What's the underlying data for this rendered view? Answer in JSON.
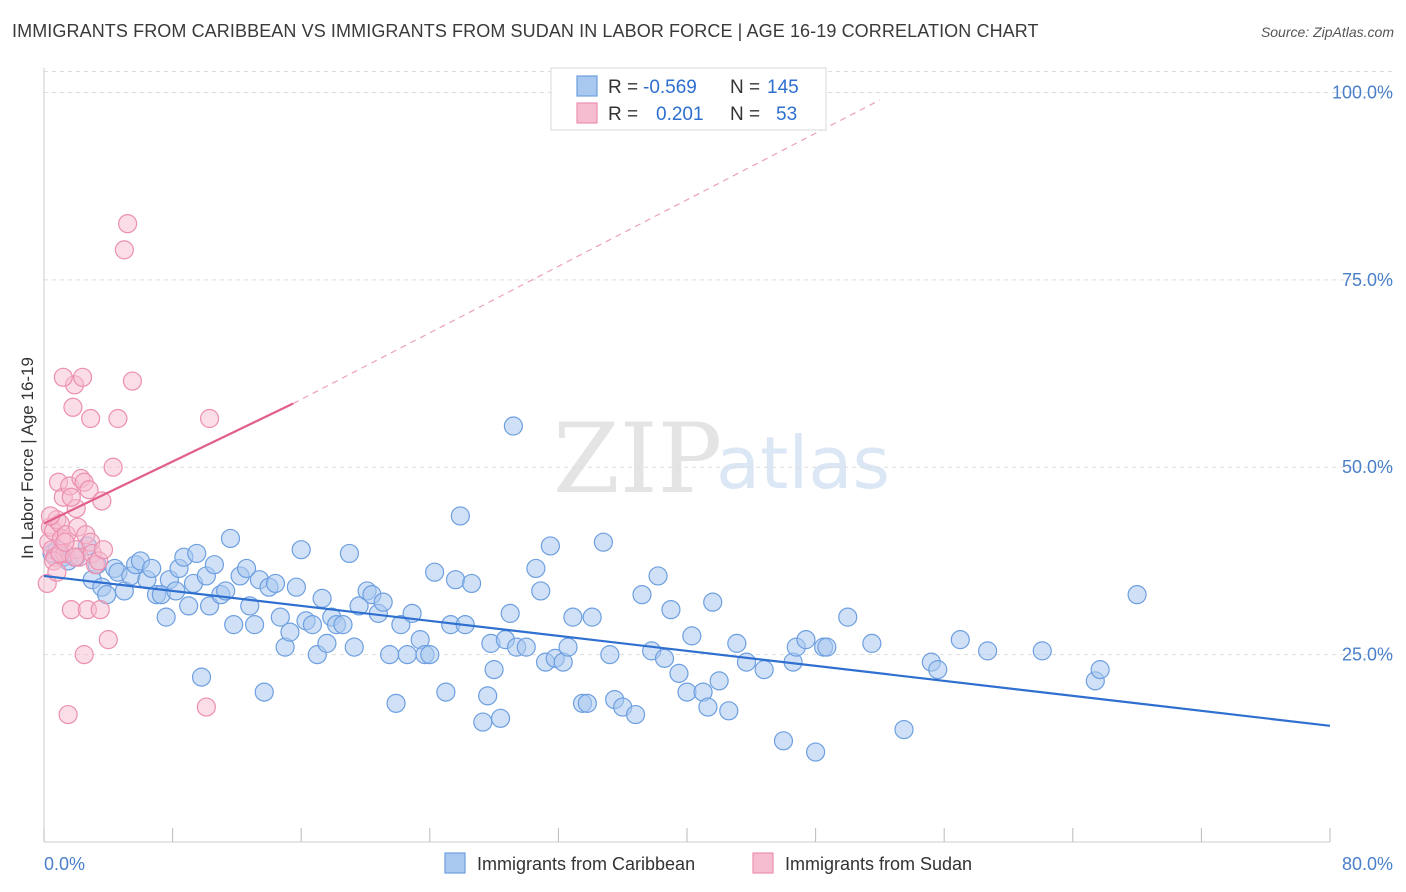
{
  "title": "IMMIGRANTS FROM CARIBBEAN VS IMMIGRANTS FROM SUDAN IN LABOR FORCE | AGE 16-19 CORRELATION CHART",
  "source": "Source: ZipAtlas.com",
  "watermark": {
    "zip": "ZIP",
    "atlas": "atlas"
  },
  "colors": {
    "caribbean_fill": "#a9c8f0",
    "caribbean_stroke": "#6d9fe0",
    "caribbean_line": "#2f6fcf",
    "sudan_fill": "#f6bcd0",
    "sudan_stroke": "#ec8fae",
    "sudan_line": "#e0608a",
    "tick_text": "#4a7fc9",
    "grid": "#dddddd"
  },
  "legend": {
    "rows": [
      {
        "r_label": "R =",
        "r_value": "-0.569",
        "n_label": "N =",
        "n_value": "145"
      },
      {
        "r_label": "R =",
        "r_value": "0.201",
        "n_label": "N =",
        "n_value": "53"
      }
    ]
  },
  "chart_data": {
    "type": "scatter",
    "title": "IMMIGRANTS FROM CARIBBEAN VS IMMIGRANTS FROM SUDAN IN LABOR FORCE | AGE 16-19 CORRELATION CHART",
    "xlabel": "",
    "ylabel": "In Labor Force | Age 16-19",
    "xlim": [
      0,
      80
    ],
    "ylim": [
      0,
      103
    ],
    "x_tick_labels": [
      "0.0%",
      "80.0%"
    ],
    "y_tick_labels": [
      "25.0%",
      "50.0%",
      "75.0%",
      "100.0%"
    ],
    "y_ticks": [
      25,
      50,
      75,
      100
    ],
    "grid": true,
    "legend_placement": "bottom",
    "series": [
      {
        "name": "Immigrants from Caribbean",
        "r": -0.569,
        "n": 145,
        "trend": {
          "x": [
            0,
            80
          ],
          "y": [
            35.5,
            15.5
          ]
        },
        "points": [
          [
            0.5,
            38.5
          ],
          [
            0.8,
            39
          ],
          [
            1.2,
            38
          ],
          [
            1.5,
            37.5
          ],
          [
            2,
            38
          ],
          [
            2.7,
            39.5
          ],
          [
            3,
            35
          ],
          [
            3.3,
            37
          ],
          [
            3.6,
            34
          ],
          [
            3.9,
            33
          ],
          [
            4.4,
            36.5
          ],
          [
            4.6,
            36
          ],
          [
            5,
            33.5
          ],
          [
            5.4,
            35.5
          ],
          [
            5.7,
            37
          ],
          [
            6,
            37.5
          ],
          [
            6.4,
            35
          ],
          [
            6.7,
            36.5
          ],
          [
            7,
            33
          ],
          [
            7.3,
            33
          ],
          [
            7.6,
            30
          ],
          [
            7.8,
            35
          ],
          [
            8.2,
            33.5
          ],
          [
            8.4,
            36.5
          ],
          [
            8.7,
            38
          ],
          [
            9,
            31.5
          ],
          [
            9.3,
            34.5
          ],
          [
            9.5,
            38.5
          ],
          [
            9.8,
            22
          ],
          [
            10.1,
            35.5
          ],
          [
            10.3,
            31.5
          ],
          [
            10.6,
            37
          ],
          [
            11,
            33
          ],
          [
            11.3,
            33.5
          ],
          [
            11.6,
            40.5
          ],
          [
            11.8,
            29
          ],
          [
            12.2,
            35.5
          ],
          [
            12.6,
            36.5
          ],
          [
            12.8,
            31.5
          ],
          [
            13.1,
            29
          ],
          [
            13.4,
            35
          ],
          [
            13.7,
            20
          ],
          [
            14,
            34
          ],
          [
            14.4,
            34.5
          ],
          [
            14.7,
            30
          ],
          [
            15,
            26
          ],
          [
            15.3,
            28
          ],
          [
            15.7,
            34
          ],
          [
            16,
            39
          ],
          [
            16.3,
            29.5
          ],
          [
            16.7,
            29
          ],
          [
            17,
            25
          ],
          [
            17.3,
            32.5
          ],
          [
            17.6,
            26.5
          ],
          [
            17.9,
            30
          ],
          [
            18.2,
            29
          ],
          [
            18.6,
            29
          ],
          [
            19,
            38.5
          ],
          [
            19.3,
            26
          ],
          [
            19.6,
            31.5
          ],
          [
            20.1,
            33.5
          ],
          [
            20.4,
            33
          ],
          [
            20.8,
            30.5
          ],
          [
            21.1,
            32
          ],
          [
            21.5,
            25
          ],
          [
            21.9,
            18.5
          ],
          [
            22.2,
            29
          ],
          [
            22.6,
            25
          ],
          [
            22.9,
            30.5
          ],
          [
            23.4,
            27
          ],
          [
            23.7,
            25
          ],
          [
            24,
            25
          ],
          [
            24.3,
            36
          ],
          [
            25,
            20
          ],
          [
            25.3,
            29
          ],
          [
            25.6,
            35
          ],
          [
            25.9,
            43.5
          ],
          [
            26.2,
            29
          ],
          [
            26.6,
            34.5
          ],
          [
            27.3,
            16
          ],
          [
            27.6,
            19.5
          ],
          [
            27.8,
            26.5
          ],
          [
            28,
            23
          ],
          [
            28.4,
            16.5
          ],
          [
            28.7,
            27
          ],
          [
            29,
            30.5
          ],
          [
            29.4,
            26
          ],
          [
            30,
            26
          ],
          [
            30.6,
            36.5
          ],
          [
            30.9,
            33.5
          ],
          [
            31.2,
            24
          ],
          [
            31.5,
            39.5
          ],
          [
            31.8,
            24.5
          ],
          [
            32.3,
            24
          ],
          [
            32.6,
            26
          ],
          [
            32.9,
            30
          ],
          [
            33.5,
            18.5
          ],
          [
            33.8,
            18.5
          ],
          [
            34.1,
            30
          ],
          [
            34.8,
            40
          ],
          [
            35.2,
            25
          ],
          [
            35.5,
            19
          ],
          [
            36,
            18
          ],
          [
            36.8,
            17
          ],
          [
            37.2,
            33
          ],
          [
            37.8,
            25.5
          ],
          [
            38.2,
            35.5
          ],
          [
            38.6,
            24.5
          ],
          [
            39,
            31
          ],
          [
            39.5,
            22.5
          ],
          [
            40,
            20
          ],
          [
            40.3,
            27.5
          ],
          [
            41,
            20
          ],
          [
            41.3,
            18
          ],
          [
            41.6,
            32
          ],
          [
            42,
            21.5
          ],
          [
            42.6,
            17.5
          ],
          [
            43.1,
            26.5
          ],
          [
            43.7,
            24
          ],
          [
            44.8,
            23
          ],
          [
            46,
            13.5
          ],
          [
            46.6,
            24
          ],
          [
            46.8,
            26
          ],
          [
            47.4,
            27
          ],
          [
            48,
            12
          ],
          [
            48.5,
            26
          ],
          [
            48.7,
            26
          ],
          [
            50,
            30
          ],
          [
            51.5,
            26.5
          ],
          [
            53.5,
            15
          ],
          [
            55.2,
            24
          ],
          [
            55.6,
            23
          ],
          [
            57,
            27
          ],
          [
            58.7,
            25.5
          ],
          [
            62.1,
            25.5
          ],
          [
            65.4,
            21.5
          ],
          [
            65.7,
            23
          ],
          [
            68,
            33
          ],
          [
            29.2,
            55.5
          ]
        ]
      },
      {
        "name": "Immigrants from Sudan",
        "r": 0.201,
        "n": 53,
        "trend": {
          "x": [
            0,
            15.5
          ],
          "y": [
            42.5,
            58.5
          ]
        },
        "trend_extension": {
          "x": [
            15.5,
            52
          ],
          "y": [
            58.5,
            99
          ]
        },
        "points": [
          [
            0.2,
            34.5
          ],
          [
            0.3,
            40
          ],
          [
            0.4,
            42
          ],
          [
            0.5,
            39
          ],
          [
            0.6,
            41.5
          ],
          [
            0.7,
            38
          ],
          [
            0.8,
            43
          ],
          [
            0.9,
            48
          ],
          [
            1,
            42.5
          ],
          [
            1.1,
            40.5
          ],
          [
            1.2,
            46
          ],
          [
            1.3,
            38.5
          ],
          [
            1.4,
            41
          ],
          [
            1.5,
            17
          ],
          [
            1.6,
            47.5
          ],
          [
            1.7,
            31
          ],
          [
            1.8,
            58
          ],
          [
            1.9,
            61
          ],
          [
            2,
            39
          ],
          [
            2,
            44.5
          ],
          [
            2.1,
            42
          ],
          [
            2.2,
            38
          ],
          [
            2.3,
            48.5
          ],
          [
            2.4,
            62
          ],
          [
            2.5,
            48
          ],
          [
            2.6,
            41
          ],
          [
            2.7,
            31
          ],
          [
            2.8,
            47
          ],
          [
            2.9,
            40
          ],
          [
            3,
            38.5
          ],
          [
            3.2,
            37
          ],
          [
            3.4,
            37.5
          ],
          [
            3.6,
            45.5
          ],
          [
            3.7,
            39
          ],
          [
            1.2,
            62
          ],
          [
            2.9,
            56.5
          ],
          [
            3.5,
            31
          ],
          [
            4,
            27
          ],
          [
            4.3,
            50
          ],
          [
            4.6,
            56.5
          ],
          [
            5,
            79
          ],
          [
            5.2,
            82.5
          ],
          [
            5.5,
            61.5
          ],
          [
            10.3,
            56.5
          ],
          [
            10.1,
            18
          ],
          [
            0.6,
            37.5
          ],
          [
            1,
            38.5
          ],
          [
            1.3,
            40
          ],
          [
            2.5,
            25
          ],
          [
            0.8,
            36
          ],
          [
            0.4,
            43.5
          ],
          [
            1.9,
            38
          ],
          [
            1.7,
            46
          ]
        ]
      }
    ]
  }
}
